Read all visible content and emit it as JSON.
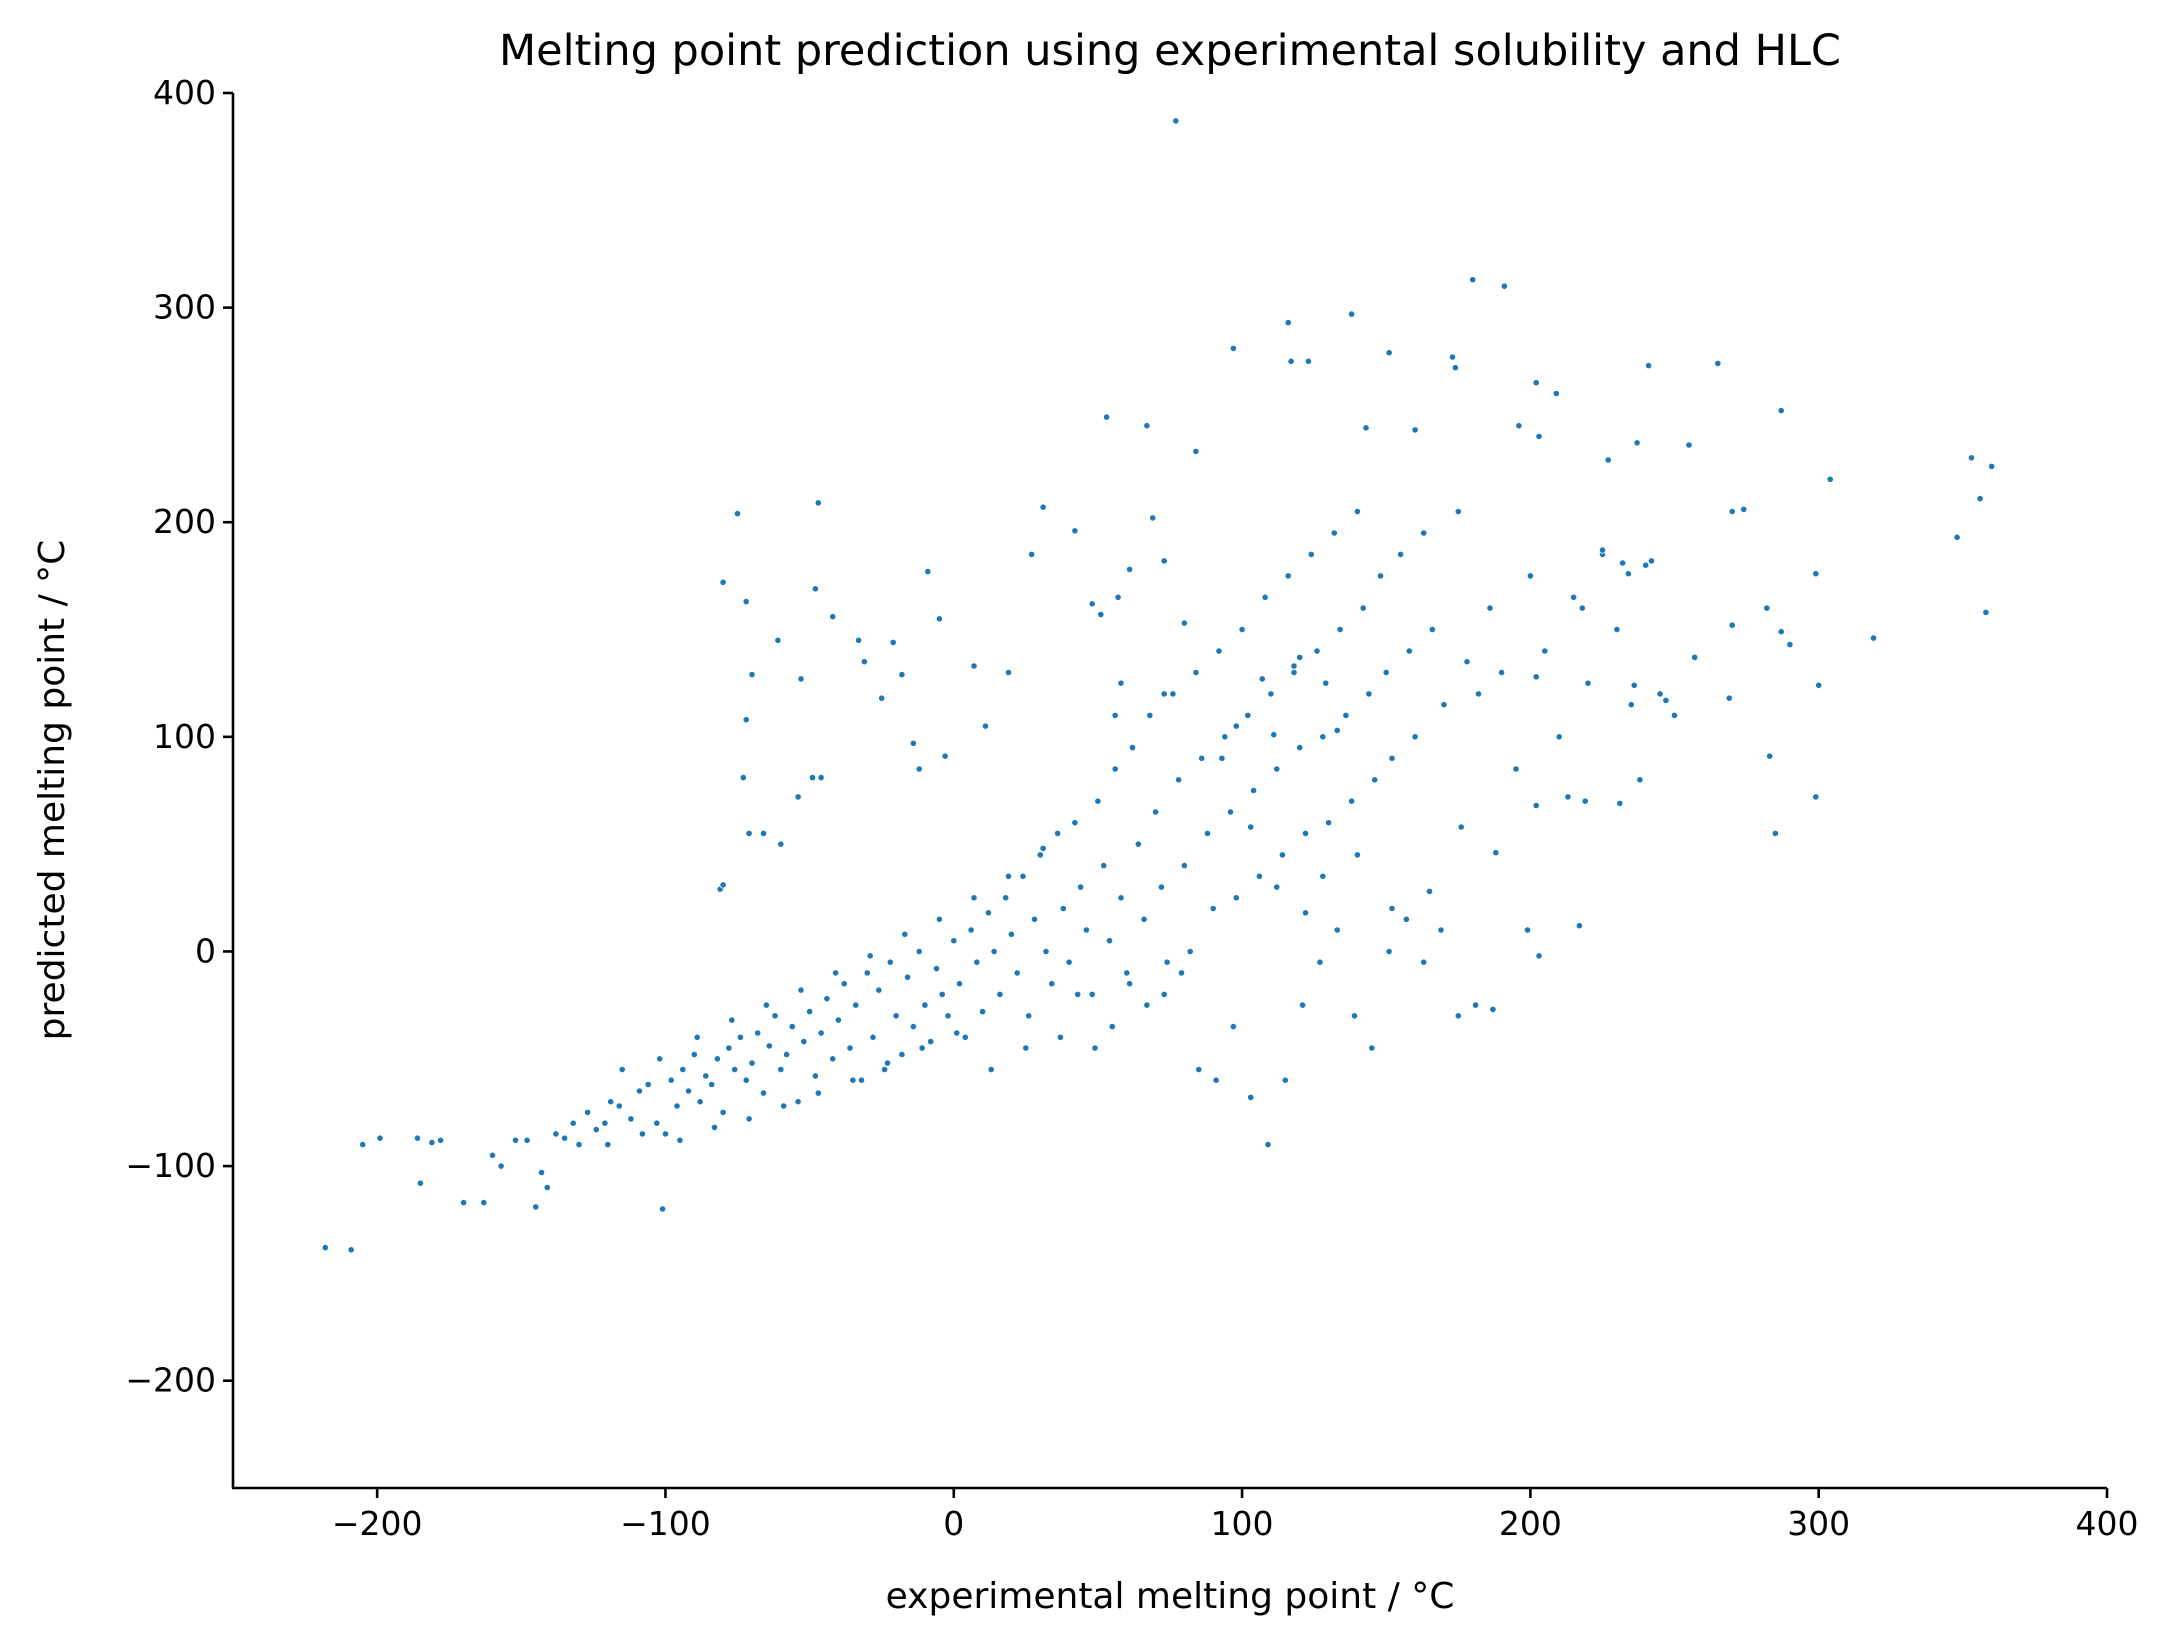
{
  "chart_data": {
    "type": "scatter",
    "title": "Melting point prediction using experimental solubility and HLC",
    "xlabel": "experimental melting point / °C",
    "ylabel": "predicted melting point / °C",
    "xlim": [
      -250,
      400
    ],
    "ylim": [
      -250,
      400
    ],
    "xticks": [
      -200,
      -100,
      0,
      100,
      200,
      300,
      400
    ],
    "yticks": [
      -200,
      -100,
      0,
      100,
      200,
      300,
      400
    ],
    "xtick_labels": [
      "−200",
      "−100",
      "0",
      "100",
      "200",
      "300",
      "400"
    ],
    "ytick_labels": [
      "−200",
      "−100",
      "0",
      "100",
      "200",
      "300",
      "400"
    ],
    "grid": false,
    "color": "#1f77b4",
    "points": [
      [
        -218,
        -138
      ],
      [
        -209,
        -139
      ],
      [
        -205,
        -90
      ],
      [
        -199,
        -87
      ],
      [
        -185,
        -108
      ],
      [
        -186,
        -87
      ],
      [
        -181,
        -89
      ],
      [
        -178,
        -88
      ],
      [
        -170,
        -117
      ],
      [
        -163,
        -117
      ],
      [
        -160,
        -95
      ],
      [
        -157,
        -100
      ],
      [
        -152,
        -88
      ],
      [
        -148,
        -88
      ],
      [
        -145,
        -119
      ],
      [
        -143,
        -103
      ],
      [
        -141,
        -110
      ],
      [
        -138,
        -85
      ],
      [
        -135,
        -87
      ],
      [
        -132,
        -80
      ],
      [
        -130,
        -90
      ],
      [
        -127,
        -75
      ],
      [
        -124,
        -83
      ],
      [
        -121,
        -80
      ],
      [
        -119,
        -70
      ],
      [
        -116,
        -72
      ],
      [
        -112,
        -78
      ],
      [
        -109,
        -65
      ],
      [
        -106,
        -62
      ],
      [
        -103,
        -80
      ],
      [
        -101,
        -120
      ],
      [
        -100,
        -85
      ],
      [
        -98,
        -60
      ],
      [
        -96,
        -72
      ],
      [
        -94,
        -55
      ],
      [
        -92,
        -65
      ],
      [
        -90,
        -48
      ],
      [
        -88,
        -70
      ],
      [
        -86,
        -58
      ],
      [
        -84,
        -62
      ],
      [
        -82,
        -50
      ],
      [
        -80,
        -75
      ],
      [
        -78,
        -45
      ],
      [
        -76,
        -55
      ],
      [
        -74,
        -40
      ],
      [
        -72,
        -60
      ],
      [
        -70,
        -52
      ],
      [
        -68,
        -38
      ],
      [
        -66,
        -66
      ],
      [
        -64,
        -44
      ],
      [
        -62,
        -30
      ],
      [
        -60,
        -55
      ],
      [
        -58,
        -48
      ],
      [
        -56,
        -35
      ],
      [
        -54,
        -70
      ],
      [
        -52,
        -42
      ],
      [
        -50,
        -28
      ],
      [
        -48,
        -58
      ],
      [
        -46,
        -38
      ],
      [
        -44,
        -22
      ],
      [
        -42,
        -50
      ],
      [
        -40,
        -32
      ],
      [
        -38,
        -15
      ],
      [
        -36,
        -45
      ],
      [
        -34,
        -25
      ],
      [
        -32,
        -60
      ],
      [
        -30,
        -10
      ],
      [
        -28,
        -40
      ],
      [
        -26,
        -18
      ],
      [
        -24,
        -55
      ],
      [
        -22,
        -5
      ],
      [
        -20,
        -30
      ],
      [
        -18,
        -48
      ],
      [
        -16,
        -12
      ],
      [
        -14,
        -35
      ],
      [
        -12,
        0
      ],
      [
        -10,
        -25
      ],
      [
        -8,
        -42
      ],
      [
        -6,
        -8
      ],
      [
        -4,
        -20
      ],
      [
        -2,
        -30
      ],
      [
        0,
        5
      ],
      [
        2,
        -15
      ],
      [
        4,
        -40
      ],
      [
        6,
        10
      ],
      [
        8,
        -5
      ],
      [
        10,
        -28
      ],
      [
        12,
        18
      ],
      [
        14,
        0
      ],
      [
        16,
        -20
      ],
      [
        18,
        25
      ],
      [
        20,
        8
      ],
      [
        22,
        -10
      ],
      [
        24,
        35
      ],
      [
        26,
        -30
      ],
      [
        28,
        15
      ],
      [
        30,
        45
      ],
      [
        32,
        0
      ],
      [
        34,
        -15
      ],
      [
        36,
        55
      ],
      [
        38,
        20
      ],
      [
        40,
        -5
      ],
      [
        42,
        60
      ],
      [
        44,
        30
      ],
      [
        46,
        10
      ],
      [
        48,
        -20
      ],
      [
        50,
        70
      ],
      [
        52,
        40
      ],
      [
        54,
        5
      ],
      [
        56,
        85
      ],
      [
        58,
        25
      ],
      [
        60,
        -10
      ],
      [
        62,
        95
      ],
      [
        64,
        50
      ],
      [
        66,
        15
      ],
      [
        68,
        110
      ],
      [
        70,
        65
      ],
      [
        72,
        30
      ],
      [
        74,
        -5
      ],
      [
        76,
        120
      ],
      [
        78,
        80
      ],
      [
        80,
        40
      ],
      [
        82,
        0
      ],
      [
        84,
        130
      ],
      [
        86,
        90
      ],
      [
        88,
        55
      ],
      [
        90,
        20
      ],
      [
        92,
        140
      ],
      [
        94,
        100
      ],
      [
        96,
        65
      ],
      [
        98,
        25
      ],
      [
        100,
        150
      ],
      [
        102,
        110
      ],
      [
        104,
        75
      ],
      [
        106,
        35
      ],
      [
        108,
        165
      ],
      [
        110,
        120
      ],
      [
        112,
        85
      ],
      [
        114,
        45
      ],
      [
        116,
        175
      ],
      [
        118,
        130
      ],
      [
        120,
        95
      ],
      [
        122,
        55
      ],
      [
        124,
        185
      ],
      [
        126,
        140
      ],
      [
        128,
        100
      ],
      [
        130,
        60
      ],
      [
        132,
        195
      ],
      [
        134,
        150
      ],
      [
        136,
        110
      ],
      [
        138,
        70
      ],
      [
        140,
        205
      ],
      [
        142,
        160
      ],
      [
        144,
        120
      ],
      [
        146,
        80
      ],
      [
        148,
        175
      ],
      [
        150,
        130
      ],
      [
        152,
        90
      ],
      [
        155,
        185
      ],
      [
        158,
        140
      ],
      [
        160,
        100
      ],
      [
        163,
        195
      ],
      [
        166,
        150
      ],
      [
        170,
        115
      ],
      [
        175,
        205
      ],
      [
        178,
        135
      ],
      [
        182,
        120
      ],
      [
        186,
        160
      ],
      [
        190,
        130
      ],
      [
        195,
        85
      ],
      [
        200,
        175
      ],
      [
        205,
        140
      ],
      [
        210,
        100
      ],
      [
        215,
        165
      ],
      [
        220,
        125
      ],
      [
        225,
        185
      ],
      [
        230,
        150
      ],
      [
        235,
        115
      ],
      [
        240,
        180
      ],
      [
        245,
        120
      ],
      [
        250,
        110
      ],
      [
        -120,
        -90
      ],
      [
        -115,
        -55
      ],
      [
        -108,
        -85
      ],
      [
        -102,
        -50
      ],
      [
        -95,
        -88
      ],
      [
        -89,
        -40
      ],
      [
        -83,
        -82
      ],
      [
        -77,
        -32
      ],
      [
        -71,
        -78
      ],
      [
        -65,
        -25
      ],
      [
        -59,
        -72
      ],
      [
        -53,
        -18
      ],
      [
        -47,
        -66
      ],
      [
        -41,
        -10
      ],
      [
        -35,
        -60
      ],
      [
        -29,
        -2
      ],
      [
        -23,
        -52
      ],
      [
        -17,
        8
      ],
      [
        -11,
        -45
      ],
      [
        -5,
        15
      ],
      [
        1,
        -38
      ],
      [
        7,
        25
      ],
      [
        13,
        -55
      ],
      [
        19,
        35
      ],
      [
        25,
        -45
      ],
      [
        31,
        48
      ],
      [
        37,
        -40
      ],
      [
        43,
        -20
      ],
      [
        49,
        -45
      ],
      [
        55,
        -35
      ],
      [
        61,
        -15
      ],
      [
        67,
        -25
      ],
      [
        73,
        -20
      ],
      [
        79,
        -10
      ],
      [
        85,
        -55
      ],
      [
        91,
        -60
      ],
      [
        97,
        -35
      ],
      [
        103,
        -68
      ],
      [
        109,
        -90
      ],
      [
        115,
        -60
      ],
      [
        121,
        -25
      ],
      [
        127,
        -5
      ],
      [
        133,
        10
      ],
      [
        139,
        -30
      ],
      [
        145,
        -45
      ],
      [
        151,
        0
      ],
      [
        157,
        15
      ],
      [
        163,
        -5
      ],
      [
        169,
        10
      ],
      [
        175,
        -30
      ],
      [
        181,
        -25
      ],
      [
        187,
        -27
      ],
      [
        199,
        10
      ],
      [
        203,
        -2
      ],
      [
        217,
        12
      ],
      [
        77,
        387
      ],
      [
        180,
        313
      ],
      [
        191,
        310
      ],
      [
        138,
        297
      ],
      [
        116,
        293
      ],
      [
        97,
        281
      ],
      [
        151,
        279
      ],
      [
        173,
        277
      ],
      [
        117,
        275
      ],
      [
        123,
        275
      ],
      [
        174,
        272
      ],
      [
        202,
        265
      ],
      [
        209,
        260
      ],
      [
        241,
        273
      ],
      [
        265,
        274
      ],
      [
        53,
        249
      ],
      [
        67,
        245
      ],
      [
        143,
        244
      ],
      [
        160,
        243
      ],
      [
        196,
        245
      ],
      [
        203,
        240
      ],
      [
        237,
        237
      ],
      [
        287,
        252
      ],
      [
        227,
        229
      ],
      [
        255,
        236
      ],
      [
        304,
        220
      ],
      [
        353,
        230
      ],
      [
        360,
        226
      ],
      [
        356,
        211
      ],
      [
        348,
        193
      ],
      [
        358,
        158
      ],
      [
        319,
        146
      ],
      [
        299,
        176
      ],
      [
        300,
        124
      ],
      [
        299,
        72
      ],
      [
        285,
        55
      ],
      [
        282,
        160
      ],
      [
        287,
        149
      ],
      [
        290,
        143
      ],
      [
        283,
        91
      ],
      [
        270,
        205
      ],
      [
        274,
        206
      ],
      [
        270,
        152
      ],
      [
        257,
        137
      ],
      [
        269,
        118
      ],
      [
        247,
        117
      ],
      [
        236,
        124
      ],
      [
        231,
        69
      ],
      [
        238,
        80
      ],
      [
        242,
        182
      ],
      [
        232,
        181
      ],
      [
        225,
        187
      ],
      [
        234,
        176
      ],
      [
        202,
        128
      ],
      [
        213,
        72
      ],
      [
        218,
        160
      ],
      [
        219,
        70
      ],
      [
        -75,
        204
      ],
      [
        -47,
        209
      ],
      [
        -80,
        172
      ],
      [
        -72,
        163
      ],
      [
        -42,
        156
      ],
      [
        -48,
        169
      ],
      [
        -61,
        145
      ],
      [
        -33,
        145
      ],
      [
        -31,
        135
      ],
      [
        -21,
        144
      ],
      [
        -18,
        129
      ],
      [
        -25,
        118
      ],
      [
        -53,
        127
      ],
      [
        -14,
        97
      ],
      [
        -9,
        177
      ],
      [
        -5,
        155
      ],
      [
        -12,
        85
      ],
      [
        -3,
        91
      ],
      [
        7,
        133
      ],
      [
        11,
        105
      ],
      [
        19,
        130
      ],
      [
        -70,
        129
      ],
      [
        -72,
        108
      ],
      [
        -73,
        81
      ],
      [
        -54,
        72
      ],
      [
        -49,
        81
      ],
      [
        -46,
        81
      ],
      [
        -66,
        55
      ],
      [
        -71,
        55
      ],
      [
        -81,
        29
      ],
      [
        -80,
        31
      ],
      [
        -60,
        50
      ],
      [
        31,
        207
      ],
      [
        42,
        196
      ],
      [
        27,
        185
      ],
      [
        61,
        178
      ],
      [
        57,
        165
      ],
      [
        48,
        162
      ],
      [
        51,
        157
      ],
      [
        69,
        202
      ],
      [
        73,
        182
      ],
      [
        84,
        233
      ],
      [
        56,
        110
      ],
      [
        58,
        125
      ],
      [
        73,
        120
      ],
      [
        80,
        153
      ],
      [
        107,
        127
      ],
      [
        118,
        133
      ],
      [
        111,
        101
      ],
      [
        133,
        103
      ],
      [
        129,
        125
      ],
      [
        120,
        137
      ],
      [
        98,
        105
      ],
      [
        93,
        90
      ],
      [
        103,
        58
      ],
      [
        112,
        30
      ],
      [
        122,
        18
      ],
      [
        128,
        35
      ],
      [
        140,
        45
      ],
      [
        152,
        20
      ],
      [
        165,
        28
      ],
      [
        176,
        58
      ],
      [
        188,
        46
      ],
      [
        202,
        68
      ]
    ]
  }
}
